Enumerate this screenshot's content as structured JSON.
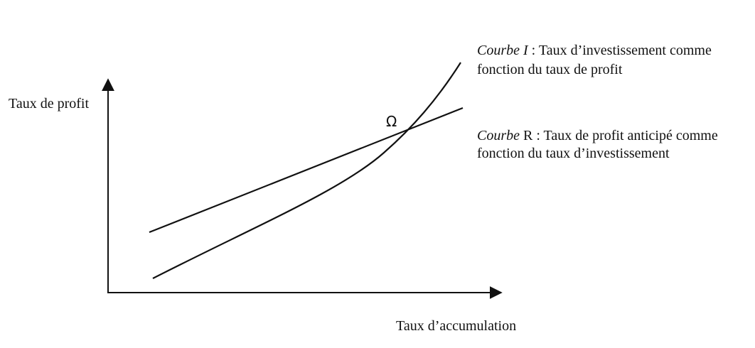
{
  "axes": {
    "y_label": "Taux de profit",
    "x_label": "Taux d’accumulation"
  },
  "point": {
    "label": "Ω"
  },
  "curves": [
    {
      "name": "Courbe I",
      "description": [
        " : Taux d’investissement comme",
        "fonction du taux de profit"
      ]
    },
    {
      "name": "Courbe",
      "description": [
        " R : Taux de profit anticipé comme",
        "fonction du taux d’investissement"
      ]
    }
  ]
}
